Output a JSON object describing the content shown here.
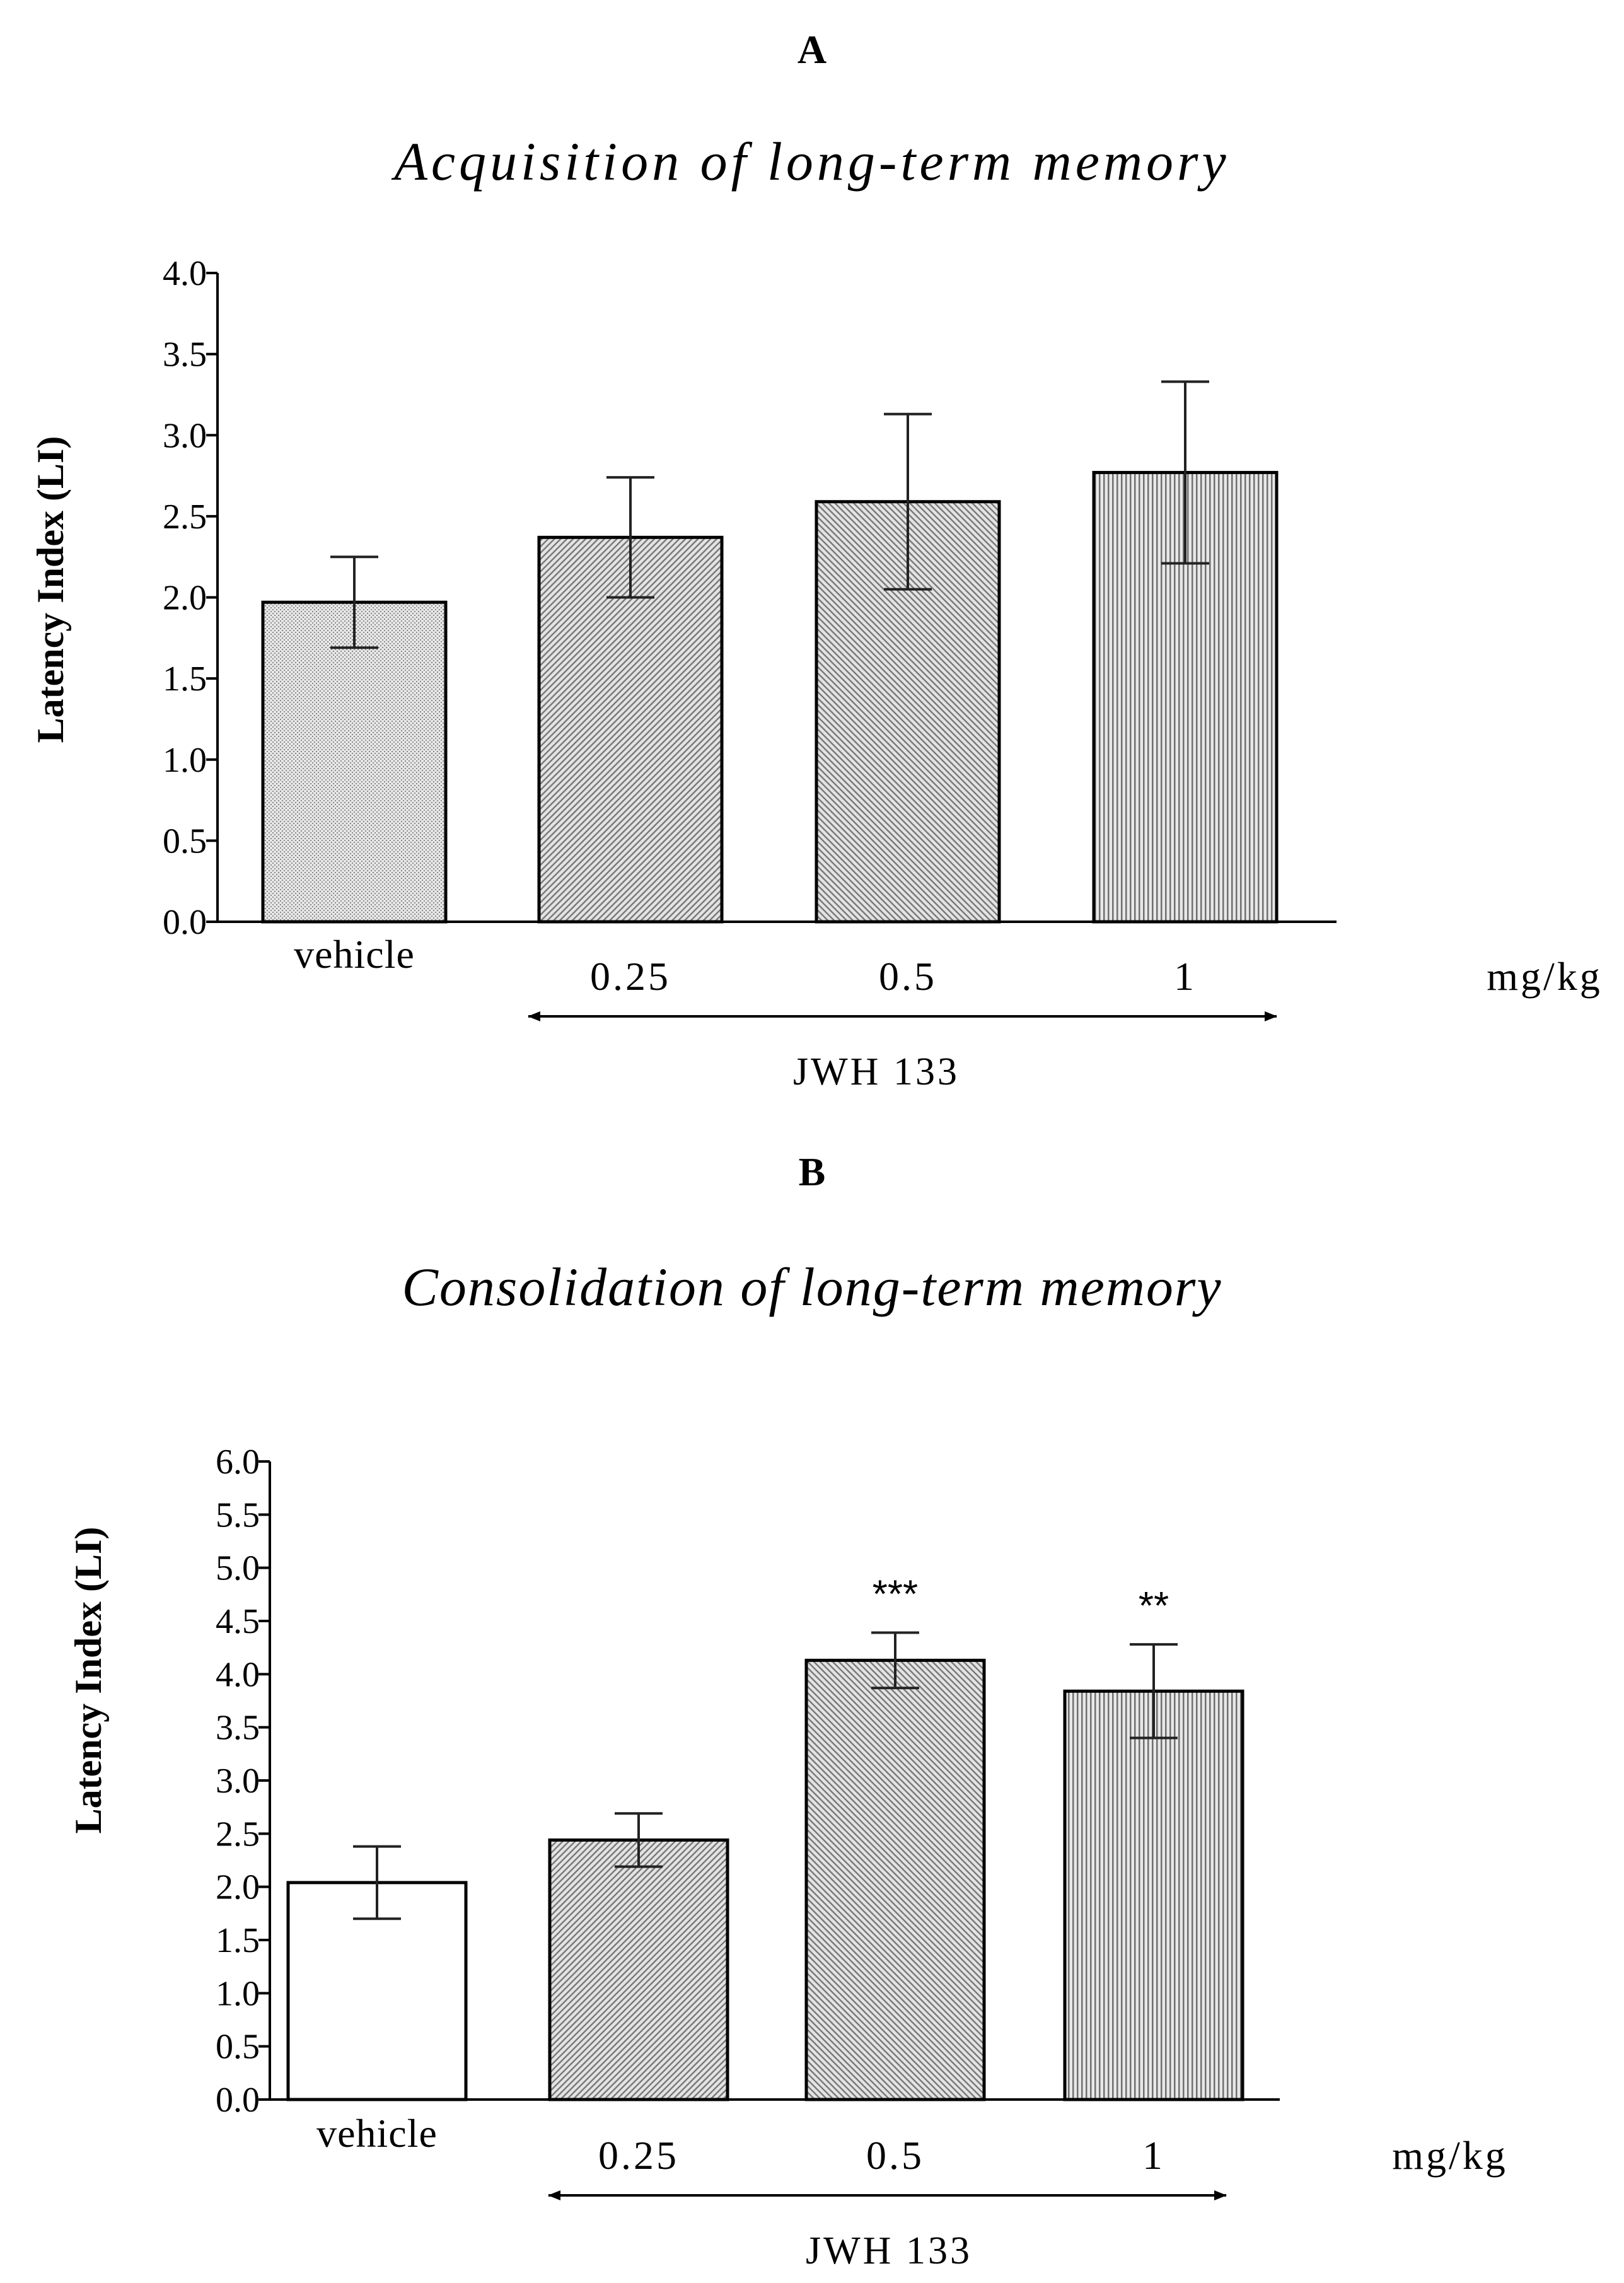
{
  "chart_data": [
    {
      "type": "bar",
      "panel": "A",
      "title": "Acquisition of long-term memory",
      "ylabel": "Latency  Index (LI)",
      "xlabel": "",
      "ylim": [
        0,
        4.0
      ],
      "yticks": [
        0.0,
        0.5,
        1.0,
        1.5,
        2.0,
        2.5,
        3.0,
        3.5,
        4.0
      ],
      "ytick_labels": [
        "0.0",
        "0.5",
        "1.0",
        "1.5",
        "2.0",
        "2.5",
        "3.0",
        "3.5",
        "4.0"
      ],
      "categories": [
        "vehicle",
        "0.25",
        "0.5",
        "1"
      ],
      "values": [
        1.97,
        2.37,
        2.59,
        2.77
      ],
      "errors": [
        0.28,
        0.37,
        0.54,
        0.56
      ],
      "significance": [
        "",
        "",
        "",
        ""
      ],
      "fills": [
        "fine-dots",
        "diag-right",
        "diag-left",
        "vertical-lines"
      ],
      "unit": "mg/kg",
      "group_label": "JWH 133",
      "group_categories": [
        "0.25",
        "0.5",
        "1"
      ]
    },
    {
      "type": "bar",
      "panel": "B",
      "title": "Consolidation of long-term memory",
      "ylabel": "Latency  Index (LI)",
      "xlabel": "",
      "ylim": [
        0,
        6.0
      ],
      "yticks": [
        0.0,
        0.5,
        1.0,
        1.5,
        2.0,
        2.5,
        3.0,
        3.5,
        4.0,
        4.5,
        5.0,
        5.5,
        6.0
      ],
      "ytick_labels": [
        "0.0",
        "0.5",
        "1.0",
        "1.5",
        "2.0",
        "2.5",
        "3.0",
        "3.5",
        "4.0",
        "4.5",
        "5.0",
        "5.5",
        "6.0"
      ],
      "categories": [
        "vehicle",
        "0.25",
        "0.5",
        "1"
      ],
      "values": [
        2.04,
        2.44,
        4.13,
        3.84
      ],
      "errors": [
        0.34,
        0.25,
        0.26,
        0.44
      ],
      "significance": [
        "",
        "",
        "***",
        "**"
      ],
      "fills": [
        "white",
        "diag-right",
        "diag-left",
        "vertical-lines"
      ],
      "unit": "mg/kg",
      "group_label": "JWH 133",
      "group_categories": [
        "0.25",
        "0.5",
        "1"
      ]
    }
  ]
}
